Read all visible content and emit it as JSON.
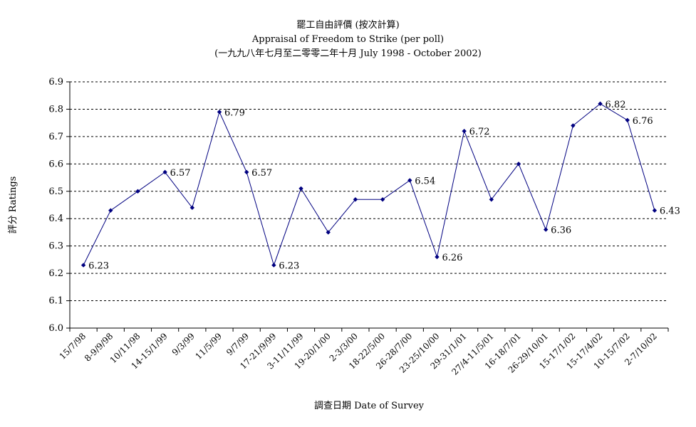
{
  "chart_data": {
    "type": "line",
    "title": "罷工自由評價 (按次計算)",
    "subtitle": "Appraisal of Freedom to Strike (per poll)",
    "subtitle2": "(一九九八年七月至二零零二年十月 July 1998 - October 2002)",
    "xlabel": "調查日期 Date of Survey",
    "ylabel": "評分 Ratings",
    "ylim": [
      6.0,
      6.9
    ],
    "yticks": [
      "6.0",
      "6.1",
      "6.2",
      "6.3",
      "6.4",
      "6.5",
      "6.6",
      "6.7",
      "6.8",
      "6.9"
    ],
    "grid": true,
    "tick_labels": [
      "15/7/98",
      "8-9/9/98",
      "10/11/98",
      "14-15/1/99",
      "9/3/99",
      "11/5/99",
      "9/7/99",
      "17-21/9/99",
      "3-11/11/99",
      "19-20/1/00",
      "2-3/3/00",
      "18-22/5/00",
      "26-28/7/00",
      "23-25/10/00",
      "29-31/1/01",
      "27/4-11/5/01",
      "16-18/7/01",
      "26-29/10/01",
      "15-17/1/02",
      "15-17/4/02",
      "10-15/7/02",
      "2-7/10/02"
    ],
    "series": [
      {
        "color": "#000080",
        "values": [
          6.23,
          6.43,
          6.5,
          6.57,
          6.44,
          6.79,
          6.57,
          6.23,
          6.51,
          6.35,
          6.47,
          6.47,
          6.54,
          6.26,
          6.72,
          6.47,
          6.6,
          6.36,
          6.74,
          6.82,
          6.76,
          6.43
        ]
      }
    ],
    "data_labels": [
      {
        "index": 0,
        "text": "6.23"
      },
      {
        "index": 3,
        "text": "6.57"
      },
      {
        "index": 5,
        "text": "6.79"
      },
      {
        "index": 6,
        "text": "6.57"
      },
      {
        "index": 7,
        "text": "6.23"
      },
      {
        "index": 12,
        "text": "6.54"
      },
      {
        "index": 13,
        "text": "6.26"
      },
      {
        "index": 14,
        "text": "6.72"
      },
      {
        "index": 17,
        "text": "6.36"
      },
      {
        "index": 19,
        "text": "6.82"
      },
      {
        "index": 20,
        "text": "6.76"
      },
      {
        "index": 21,
        "text": "6.43"
      }
    ]
  }
}
